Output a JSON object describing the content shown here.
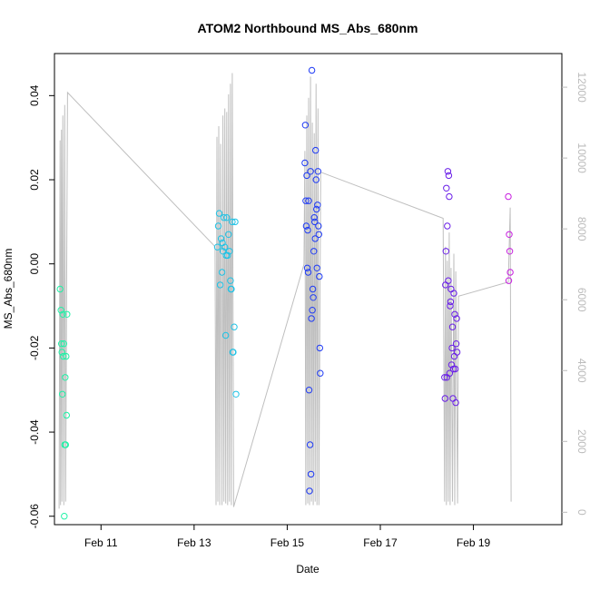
{
  "chart_data": {
    "type": "scatter",
    "title": "ATOM2 Northbound MS_Abs_680nm",
    "xlabel": "Date",
    "ylabel": "MS_Abs_680nm",
    "x_range": [
      "2025-02-09T21:00",
      "2025-02-20T19:00"
    ],
    "xlim": [
      0,
      10.9
    ],
    "x_ticks": [
      {
        "label": "Feb 11",
        "x": 1.0
      },
      {
        "label": "Feb 13",
        "x": 3.0
      },
      {
        "label": "Feb 15",
        "x": 5.0
      },
      {
        "label": "Feb 17",
        "x": 7.0
      },
      {
        "label": "Feb 19",
        "x": 9.0
      }
    ],
    "ylim": [
      -0.062,
      0.05
    ],
    "y_ticks": [
      {
        "label": "-0.06",
        "value": -0.06
      },
      {
        "label": "-0.04",
        "value": -0.04
      },
      {
        "label": "-0.02",
        "value": -0.02
      },
      {
        "label": "0.00",
        "value": 0.0
      },
      {
        "label": "0.02",
        "value": 0.02
      },
      {
        "label": "0.04",
        "value": 0.04
      }
    ],
    "y2lim": [
      -350,
      12950
    ],
    "y2_ticks": [
      {
        "label": "0",
        "value": 0
      },
      {
        "label": "2000",
        "value": 2000
      },
      {
        "label": "4000",
        "value": 4000
      },
      {
        "label": "6000",
        "value": 6000
      },
      {
        "label": "8000",
        "value": 8000
      },
      {
        "label": "10000",
        "value": 10000
      },
      {
        "label": "12000",
        "value": 12000
      }
    ],
    "grid": false,
    "colors": {
      "points_by_day": [
        "#1ef2a6",
        "#1fc3e6",
        "#1f3bf5",
        "#6a1fe8",
        "#c81fe0"
      ],
      "secondary_line": "#bfbfbf"
    },
    "series": [
      {
        "points": [
          {
            "x": 0.12,
            "y": -0.006
          },
          {
            "x": 0.14,
            "y": -0.011
          },
          {
            "x": 0.15,
            "y": -0.019
          },
          {
            "x": 0.16,
            "y": -0.021
          },
          {
            "x": 0.17,
            "y": -0.031
          },
          {
            "x": 0.18,
            "y": -0.012
          },
          {
            "x": 0.19,
            "y": -0.022
          },
          {
            "x": 0.2,
            "y": -0.019
          },
          {
            "x": 0.21,
            "y": -0.06
          },
          {
            "x": 0.22,
            "y": -0.043
          },
          {
            "x": 0.23,
            "y": -0.027
          },
          {
            "x": 0.25,
            "y": -0.022
          },
          {
            "x": 0.26,
            "y": -0.036
          },
          {
            "x": 0.27,
            "y": -0.012
          },
          {
            "x": 0.24,
            "y": -0.043
          }
        ]
      },
      {
        "points": [
          {
            "x": 3.5,
            "y": 0.004
          },
          {
            "x": 3.52,
            "y": 0.009
          },
          {
            "x": 3.54,
            "y": 0.012
          },
          {
            "x": 3.56,
            "y": -0.005
          },
          {
            "x": 3.58,
            "y": 0.006
          },
          {
            "x": 3.6,
            "y": -0.002
          },
          {
            "x": 3.62,
            "y": 0.003
          },
          {
            "x": 3.64,
            "y": 0.011
          },
          {
            "x": 3.66,
            "y": 0.004
          },
          {
            "x": 3.68,
            "y": -0.017
          },
          {
            "x": 3.7,
            "y": 0.011
          },
          {
            "x": 3.72,
            "y": 0.002
          },
          {
            "x": 3.74,
            "y": 0.007
          },
          {
            "x": 3.76,
            "y": 0.003
          },
          {
            "x": 3.78,
            "y": -0.004
          },
          {
            "x": 3.8,
            "y": -0.006
          },
          {
            "x": 3.82,
            "y": 0.01
          },
          {
            "x": 3.84,
            "y": -0.021
          },
          {
            "x": 3.86,
            "y": -0.015
          },
          {
            "x": 3.88,
            "y": 0.01
          },
          {
            "x": 3.9,
            "y": -0.031
          },
          {
            "x": 3.61,
            "y": 0.005
          },
          {
            "x": 3.69,
            "y": 0.002
          },
          {
            "x": 3.79,
            "y": -0.006
          },
          {
            "x": 3.83,
            "y": -0.021
          }
        ]
      },
      {
        "points": [
          {
            "x": 5.38,
            "y": 0.024
          },
          {
            "x": 5.39,
            "y": 0.033
          },
          {
            "x": 5.4,
            "y": 0.015
          },
          {
            "x": 5.41,
            "y": 0.009
          },
          {
            "x": 5.42,
            "y": 0.021
          },
          {
            "x": 5.43,
            "y": -0.001
          },
          {
            "x": 5.44,
            "y": 0.008
          },
          {
            "x": 5.45,
            "y": -0.002
          },
          {
            "x": 5.46,
            "y": 0.015
          },
          {
            "x": 5.47,
            "y": -0.03
          },
          {
            "x": 5.48,
            "y": -0.054
          },
          {
            "x": 5.49,
            "y": -0.043
          },
          {
            "x": 5.5,
            "y": 0.022
          },
          {
            "x": 5.51,
            "y": -0.05
          },
          {
            "x": 5.52,
            "y": -0.013
          },
          {
            "x": 5.53,
            "y": 0.046
          },
          {
            "x": 5.54,
            "y": -0.011
          },
          {
            "x": 5.55,
            "y": -0.006
          },
          {
            "x": 5.56,
            "y": -0.008
          },
          {
            "x": 5.57,
            "y": 0.003
          },
          {
            "x": 5.58,
            "y": 0.011
          },
          {
            "x": 5.59,
            "y": 0.01
          },
          {
            "x": 5.6,
            "y": 0.006
          },
          {
            "x": 5.61,
            "y": 0.027
          },
          {
            "x": 5.62,
            "y": 0.02
          },
          {
            "x": 5.63,
            "y": 0.013
          },
          {
            "x": 5.64,
            "y": -0.001
          },
          {
            "x": 5.65,
            "y": 0.014
          },
          {
            "x": 5.66,
            "y": 0.022
          },
          {
            "x": 5.67,
            "y": 0.009
          },
          {
            "x": 5.68,
            "y": 0.007
          },
          {
            "x": 5.69,
            "y": -0.003
          },
          {
            "x": 5.7,
            "y": -0.02
          },
          {
            "x": 5.71,
            "y": -0.026
          }
        ]
      },
      {
        "points": [
          {
            "x": 8.38,
            "y": -0.027
          },
          {
            "x": 8.39,
            "y": -0.032
          },
          {
            "x": 8.4,
            "y": -0.005
          },
          {
            "x": 8.41,
            "y": 0.003
          },
          {
            "x": 8.42,
            "y": 0.018
          },
          {
            "x": 8.43,
            "y": -0.027
          },
          {
            "x": 8.44,
            "y": 0.009
          },
          {
            "x": 8.45,
            "y": 0.022
          },
          {
            "x": 8.46,
            "y": -0.004
          },
          {
            "x": 8.47,
            "y": 0.021
          },
          {
            "x": 8.48,
            "y": 0.016
          },
          {
            "x": 8.49,
            "y": -0.026
          },
          {
            "x": 8.5,
            "y": -0.01
          },
          {
            "x": 8.51,
            "y": -0.009
          },
          {
            "x": 8.52,
            "y": -0.006
          },
          {
            "x": 8.53,
            "y": -0.024
          },
          {
            "x": 8.54,
            "y": -0.02
          },
          {
            "x": 8.55,
            "y": -0.015
          },
          {
            "x": 8.56,
            "y": -0.032
          },
          {
            "x": 8.57,
            "y": -0.025
          },
          {
            "x": 8.58,
            "y": -0.007
          },
          {
            "x": 8.59,
            "y": -0.022
          },
          {
            "x": 8.6,
            "y": -0.012
          },
          {
            "x": 8.61,
            "y": -0.025
          },
          {
            "x": 8.62,
            "y": -0.033
          },
          {
            "x": 8.63,
            "y": -0.019
          },
          {
            "x": 8.64,
            "y": -0.013
          },
          {
            "x": 8.65,
            "y": -0.021
          }
        ]
      },
      {
        "points": [
          {
            "x": 9.75,
            "y": 0.016
          },
          {
            "x": 9.76,
            "y": -0.004
          },
          {
            "x": 9.77,
            "y": 0.007
          },
          {
            "x": 9.78,
            "y": 0.003
          },
          {
            "x": 9.79,
            "y": -0.002
          }
        ]
      }
    ],
    "secondary_series": {
      "points": [
        [
          0.1,
          100
        ],
        [
          0.12,
          10500
        ],
        [
          0.13,
          200
        ],
        [
          0.15,
          10800
        ],
        [
          0.16,
          300
        ],
        [
          0.18,
          11200
        ],
        [
          0.2,
          200
        ],
        [
          0.22,
          11500
        ],
        [
          0.24,
          300
        ],
        [
          0.28,
          11850
        ],
        [
          3.45,
          7500
        ],
        [
          3.47,
          200
        ],
        [
          3.49,
          10600
        ],
        [
          3.51,
          300
        ],
        [
          3.53,
          10900
        ],
        [
          3.55,
          200
        ],
        [
          3.57,
          10400
        ],
        [
          3.6,
          200
        ],
        [
          3.62,
          11200
        ],
        [
          3.64,
          300
        ],
        [
          3.66,
          11400
        ],
        [
          3.68,
          250
        ],
        [
          3.7,
          11300
        ],
        [
          3.72,
          200
        ],
        [
          3.74,
          11800
        ],
        [
          3.76,
          300
        ],
        [
          3.78,
          12100
        ],
        [
          3.8,
          200
        ],
        [
          3.82,
          12400
        ],
        [
          3.85,
          150
        ],
        [
          5.36,
          7000
        ],
        [
          5.38,
          10200
        ],
        [
          5.4,
          200
        ],
        [
          5.42,
          11200
        ],
        [
          5.44,
          250
        ],
        [
          5.46,
          11700
        ],
        [
          5.48,
          200
        ],
        [
          5.5,
          12300
        ],
        [
          5.52,
          300
        ],
        [
          5.54,
          11000
        ],
        [
          5.56,
          200
        ],
        [
          5.58,
          10700
        ],
        [
          5.6,
          300
        ],
        [
          5.62,
          12100
        ],
        [
          5.64,
          200
        ],
        [
          5.66,
          11400
        ],
        [
          5.68,
          200
        ],
        [
          5.72,
          9600
        ],
        [
          8.35,
          8300
        ],
        [
          8.38,
          300
        ],
        [
          8.4,
          7500
        ],
        [
          8.42,
          200
        ],
        [
          8.44,
          7100
        ],
        [
          8.46,
          300
        ],
        [
          8.48,
          7900
        ],
        [
          8.5,
          200
        ],
        [
          8.52,
          6900
        ],
        [
          8.55,
          300
        ],
        [
          8.58,
          7300
        ],
        [
          8.6,
          200
        ],
        [
          8.62,
          6800
        ],
        [
          8.66,
          250
        ],
        [
          8.68,
          6100
        ],
        [
          9.75,
          6500
        ],
        [
          9.77,
          7500
        ],
        [
          9.79,
          8600
        ],
        [
          9.81,
          300
        ]
      ]
    }
  }
}
